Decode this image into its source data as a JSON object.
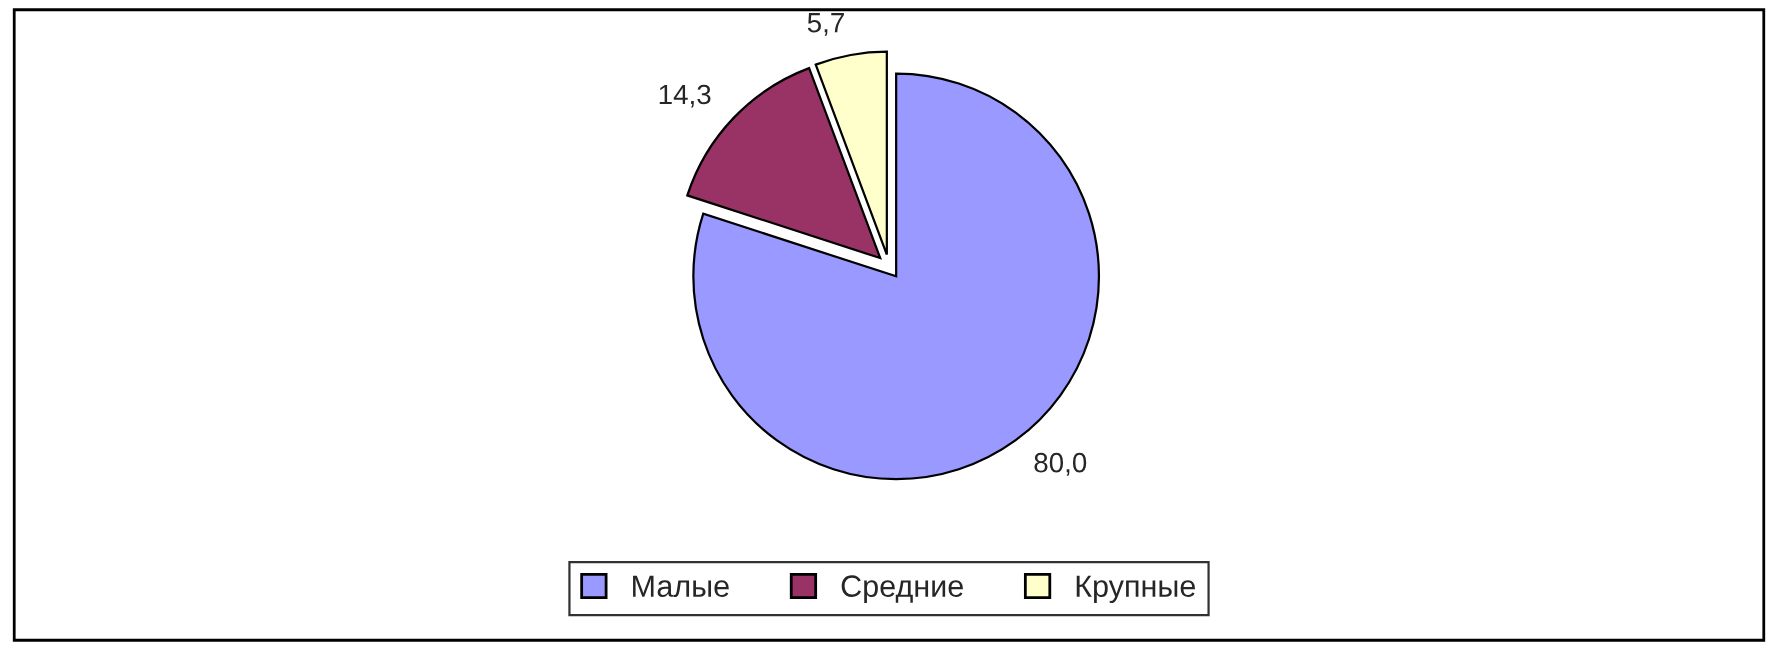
{
  "chart_data": {
    "type": "pie",
    "categories": [
      "Малые",
      "Средние",
      "Крупные"
    ],
    "values": [
      80.0,
      14.3,
      5.7
    ],
    "colors": [
      "#9999ff",
      "#993366",
      "#ffffcc"
    ],
    "value_labels": [
      "80,0",
      "14,3",
      "5,7"
    ],
    "legend": "bottom"
  }
}
